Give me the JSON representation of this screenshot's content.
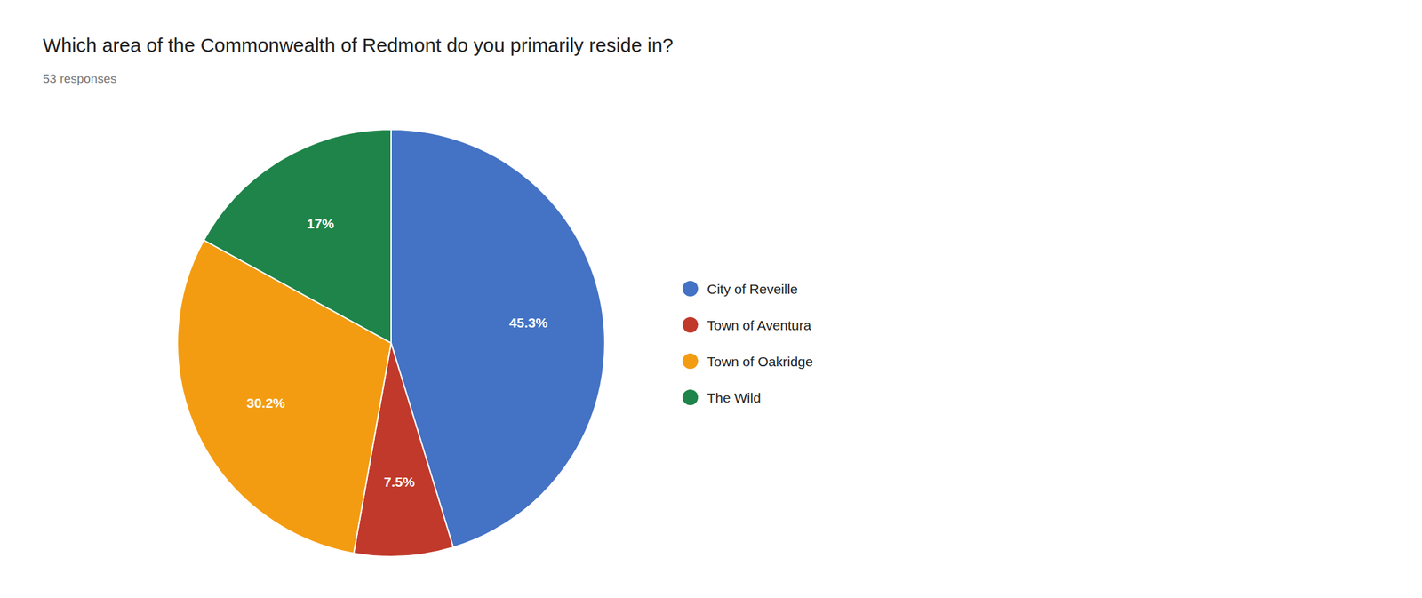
{
  "chart_data": {
    "type": "pie",
    "title": "Which area of the Commonwealth of Redmont do you primarily reside in?",
    "subtitle": "53 responses",
    "categories": [
      "City of Reveille",
      "Town of Aventura",
      "Town of Oakridge",
      "The Wild"
    ],
    "values": [
      45.3,
      7.5,
      30.2,
      17
    ],
    "value_labels": [
      "45.3%",
      "7.5%",
      "30.2%",
      "17%"
    ],
    "colors": [
      "#4472C4",
      "#C0392B",
      "#F39C12",
      "#1E8449"
    ],
    "data_labels": true,
    "legend": "right"
  }
}
